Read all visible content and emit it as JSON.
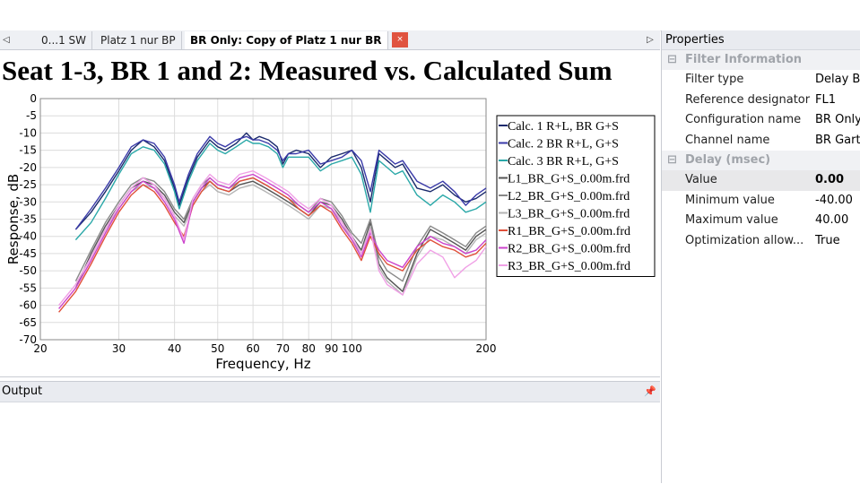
{
  "tabs": {
    "left_arrow": "◁",
    "right_arrow": "▷",
    "items": [
      {
        "label": "0...1 SW",
        "active": false
      },
      {
        "label": "Platz 1 nur BP",
        "active": false
      },
      {
        "label": "BR Only: Copy of Platz 1 nur BR",
        "active": true
      }
    ],
    "close_glyph": "×"
  },
  "chart_data": {
    "type": "line",
    "title": "Seat 1-3, BR 1 and 2: Measured vs. Calculated Sum",
    "xlabel": "Frequency, Hz",
    "ylabel": "Response, dB",
    "xscale": "log",
    "xlim": [
      20,
      200
    ],
    "ylim": [
      -70,
      0
    ],
    "xticks": [
      20,
      30,
      40,
      50,
      60,
      70,
      80,
      90,
      100,
      200
    ],
    "yticks": [
      0,
      -5,
      -10,
      -15,
      -20,
      -25,
      -30,
      -35,
      -40,
      -45,
      -50,
      -55,
      -60,
      -65,
      -70
    ],
    "grid": true,
    "legend_position": "right",
    "series": [
      {
        "name": "Calc. 1 R+L, BR G+S",
        "color": "#1a2a6c",
        "x": [
          24,
          26,
          28,
          30,
          32,
          34,
          36,
          38,
          40,
          41,
          43,
          45,
          48,
          50,
          52,
          55,
          58,
          60,
          62,
          65,
          68,
          70,
          72,
          75,
          80,
          85,
          90,
          95,
          100,
          105,
          110,
          115,
          120,
          125,
          130,
          140,
          150,
          160,
          170,
          180,
          190,
          200
        ],
        "y": [
          -38,
          -33,
          -27,
          -21,
          -15,
          -12,
          -14,
          -18,
          -26,
          -31,
          -23,
          -17,
          -12,
          -14,
          -15,
          -13,
          -10,
          -12,
          -11,
          -12,
          -14,
          -19,
          -16,
          -15,
          -16,
          -20,
          -17,
          -16,
          -15,
          -20,
          -30,
          -16,
          -18,
          -20,
          -19,
          -26,
          -27,
          -25,
          -28,
          -30,
          -29,
          -27
        ]
      },
      {
        "name": "Calc. 2 BR R+L, G+S",
        "color": "#3a3aa8",
        "x": [
          24,
          26,
          28,
          30,
          32,
          34,
          36,
          38,
          40,
          41,
          43,
          45,
          48,
          50,
          52,
          55,
          58,
          60,
          62,
          65,
          68,
          70,
          72,
          75,
          80,
          85,
          90,
          95,
          100,
          105,
          110,
          115,
          120,
          125,
          130,
          140,
          150,
          160,
          170,
          180,
          190,
          200
        ],
        "y": [
          -38,
          -32,
          -26,
          -20,
          -14,
          -12,
          -13,
          -17,
          -25,
          -30,
          -22,
          -16,
          -11,
          -13,
          -14,
          -12,
          -11,
          -12,
          -12,
          -13,
          -15,
          -18,
          -16,
          -16,
          -15,
          -19,
          -18,
          -17,
          -15,
          -18,
          -27,
          -15,
          -17,
          -19,
          -18,
          -24,
          -26,
          -24,
          -27,
          -31,
          -28,
          -26
        ]
      },
      {
        "name": "Calc. 3 BR R+L, G+S",
        "color": "#2aa8a8",
        "x": [
          24,
          26,
          28,
          30,
          32,
          34,
          36,
          38,
          40,
          41,
          43,
          45,
          48,
          50,
          52,
          55,
          58,
          60,
          62,
          65,
          68,
          70,
          72,
          75,
          80,
          85,
          90,
          95,
          100,
          105,
          110,
          115,
          120,
          125,
          130,
          140,
          150,
          160,
          170,
          180,
          190,
          200
        ],
        "y": [
          -41,
          -36,
          -29,
          -22,
          -16,
          -14,
          -15,
          -19,
          -27,
          -32,
          -24,
          -18,
          -13,
          -15,
          -16,
          -14,
          -12,
          -13,
          -13,
          -14,
          -16,
          -20,
          -17,
          -17,
          -17,
          -21,
          -19,
          -18,
          -17,
          -22,
          -33,
          -18,
          -20,
          -22,
          -21,
          -28,
          -31,
          -28,
          -30,
          -33,
          -32,
          -30
        ]
      },
      {
        "name": "L1_BR_G+S_0.00m.frd",
        "color": "#555555",
        "x": [
          24,
          26,
          28,
          30,
          32,
          34,
          36,
          38,
          40,
          42,
          44,
          46,
          48,
          50,
          53,
          56,
          60,
          64,
          68,
          72,
          76,
          80,
          85,
          90,
          95,
          100,
          105,
          110,
          115,
          120,
          130,
          140,
          150,
          160,
          170,
          180,
          190,
          200
        ],
        "y": [
          -55,
          -45,
          -37,
          -31,
          -26,
          -24,
          -25,
          -28,
          -33,
          -36,
          -30,
          -26,
          -24,
          -26,
          -27,
          -25,
          -24,
          -26,
          -28,
          -30,
          -32,
          -34,
          -30,
          -31,
          -35,
          -40,
          -44,
          -36,
          -48,
          -52,
          -56,
          -45,
          -38,
          -40,
          -42,
          -44,
          -40,
          -38
        ]
      },
      {
        "name": "L2_BR_G+S_0.00m.frd",
        "color": "#888888",
        "x": [
          24,
          26,
          28,
          30,
          32,
          34,
          36,
          38,
          40,
          42,
          44,
          46,
          48,
          50,
          53,
          56,
          60,
          64,
          68,
          72,
          76,
          80,
          85,
          90,
          95,
          100,
          105,
          110,
          115,
          120,
          130,
          140,
          150,
          160,
          170,
          180,
          190,
          200
        ],
        "y": [
          -53,
          -44,
          -36,
          -30,
          -25,
          -23,
          -24,
          -27,
          -32,
          -35,
          -29,
          -25,
          -23,
          -25,
          -26,
          -24,
          -23,
          -25,
          -27,
          -29,
          -31,
          -33,
          -29,
          -30,
          -34,
          -39,
          -42,
          -35,
          -46,
          -50,
          -53,
          -43,
          -37,
          -39,
          -41,
          -43,
          -39,
          -37
        ]
      },
      {
        "name": "L3_BR_G+S_0.00m.frd",
        "color": "#b4b4b4",
        "x": [
          24,
          26,
          28,
          30,
          32,
          34,
          36,
          38,
          40,
          42,
          44,
          46,
          48,
          50,
          53,
          56,
          60,
          64,
          68,
          72,
          76,
          80,
          85,
          90,
          95,
          100,
          105,
          110,
          115,
          120,
          130,
          140,
          150,
          160,
          170,
          180,
          190,
          200
        ],
        "y": [
          -54,
          -46,
          -38,
          -32,
          -27,
          -25,
          -26,
          -29,
          -34,
          -37,
          -31,
          -27,
          -25,
          -27,
          -28,
          -26,
          -25,
          -27,
          -29,
          -31,
          -33,
          -35,
          -31,
          -32,
          -36,
          -41,
          -45,
          -37,
          -49,
          -53,
          -57,
          -46,
          -40,
          -41,
          -43,
          -45,
          -41,
          -39
        ]
      },
      {
        "name": "R1_BR_G+S_0.00m.frd",
        "color": "#e0503a",
        "x": [
          22,
          24,
          26,
          28,
          30,
          32,
          34,
          36,
          38,
          40,
          42,
          44,
          46,
          48,
          50,
          53,
          56,
          60,
          64,
          68,
          72,
          76,
          80,
          85,
          90,
          95,
          100,
          105,
          110,
          115,
          120,
          130,
          140,
          150,
          160,
          170,
          180,
          190,
          200
        ],
        "y": [
          -62,
          -56,
          -48,
          -40,
          -33,
          -28,
          -25,
          -27,
          -31,
          -36,
          -40,
          -31,
          -27,
          -24,
          -26,
          -27,
          -24,
          -23,
          -25,
          -27,
          -29,
          -32,
          -34,
          -31,
          -33,
          -38,
          -42,
          -47,
          -40,
          -45,
          -48,
          -50,
          -44,
          -41,
          -43,
          -44,
          -46,
          -45,
          -42
        ]
      },
      {
        "name": "R2_BR_G+S_0.00m.frd",
        "color": "#cc44cc",
        "x": [
          22,
          24,
          26,
          28,
          30,
          32,
          34,
          36,
          38,
          40,
          42,
          44,
          46,
          48,
          50,
          53,
          56,
          60,
          64,
          68,
          72,
          76,
          80,
          85,
          90,
          95,
          100,
          105,
          110,
          115,
          120,
          130,
          140,
          150,
          160,
          170,
          180,
          190,
          200
        ],
        "y": [
          -61,
          -55,
          -47,
          -39,
          -32,
          -27,
          -24,
          -26,
          -30,
          -35,
          -42,
          -30,
          -26,
          -23,
          -25,
          -26,
          -23,
          -22,
          -24,
          -26,
          -28,
          -31,
          -33,
          -30,
          -32,
          -37,
          -41,
          -46,
          -39,
          -44,
          -47,
          -49,
          -43,
          -40,
          -42,
          -43,
          -45,
          -44,
          -41
        ]
      },
      {
        "name": "R3_BR_G+S_0.00m.frd",
        "color": "#f0a0e6",
        "x": [
          22,
          24,
          26,
          28,
          30,
          32,
          34,
          36,
          38,
          40,
          42,
          44,
          46,
          48,
          50,
          53,
          56,
          60,
          64,
          68,
          72,
          76,
          80,
          85,
          90,
          95,
          100,
          105,
          110,
          115,
          120,
          130,
          140,
          150,
          160,
          170,
          180,
          190,
          200
        ],
        "y": [
          -60,
          -54,
          -46,
          -38,
          -31,
          -26,
          -23,
          -25,
          -29,
          -34,
          -41,
          -29,
          -25,
          -22,
          -24,
          -25,
          -22,
          -21,
          -23,
          -25,
          -27,
          -30,
          -32,
          -29,
          -31,
          -36,
          -40,
          -45,
          -38,
          -50,
          -54,
          -57,
          -48,
          -44,
          -46,
          -52,
          -49,
          -47,
          -43
        ]
      }
    ]
  },
  "properties": {
    "title": "Properties",
    "categories": [
      {
        "name": "Filter Information",
        "toggle": "⊟",
        "rows": [
          {
            "name": "Filter type",
            "value": "Delay B",
            "selected": false,
            "bold": false
          },
          {
            "name": "Reference designator",
            "value": "FL1",
            "selected": false,
            "bold": false
          },
          {
            "name": "Configuration name",
            "value": "BR Only",
            "selected": false,
            "bold": false
          },
          {
            "name": "Channel name",
            "value": "BR Gart",
            "selected": false,
            "bold": false
          }
        ]
      },
      {
        "name": "Delay (msec)",
        "toggle": "⊟",
        "rows": [
          {
            "name": "Value",
            "value": "0.00",
            "selected": true,
            "bold": true
          },
          {
            "name": "Minimum value",
            "value": "-40.00",
            "selected": false,
            "bold": false
          },
          {
            "name": "Maximum value",
            "value": "40.00",
            "selected": false,
            "bold": false
          },
          {
            "name": "Optimization allow...",
            "value": "True",
            "selected": false,
            "bold": false
          }
        ]
      }
    ]
  },
  "output": {
    "title": "Output",
    "pin_glyph": "📌"
  }
}
